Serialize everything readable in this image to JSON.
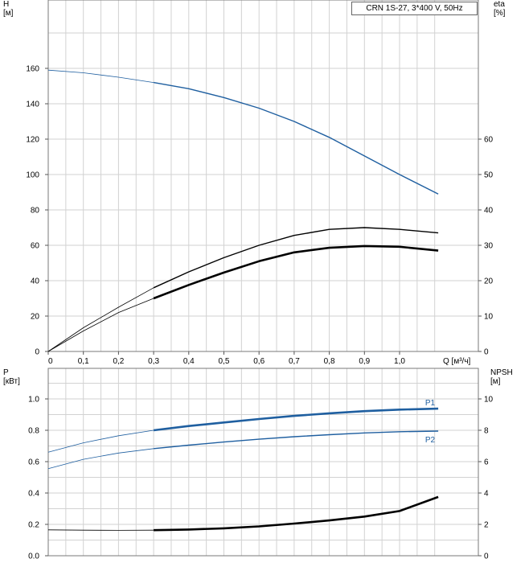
{
  "chart_data": [
    {
      "type": "line",
      "title": "CRN 1S-27, 3*400 V, 50Hz",
      "xlabel": "Q [м³/ч]",
      "ylabel_left": "H\n[м]",
      "ylabel_right": "eta\n[%]",
      "xlim": [
        0,
        1.1
      ],
      "ylim_left": [
        0,
        180
      ],
      "ylim_right": [
        0,
        90
      ],
      "x_ticks": [
        "0",
        "0,1",
        "0,2",
        "0,3",
        "0,4",
        "0,5",
        "0,6",
        "0,7",
        "0,8",
        "0,9",
        "1,0"
      ],
      "y_ticks_left": [
        "0",
        "20",
        "40",
        "60",
        "80",
        "100",
        "120",
        "140",
        "160"
      ],
      "y_ticks_right": [
        "0",
        "10",
        "20",
        "30",
        "40",
        "50",
        "60"
      ],
      "grid": true,
      "series": [
        {
          "axis": "left",
          "color": "#1f5fa0",
          "operating_range": [
            0.3,
            1.11
          ],
          "x": [
            0,
            0.1,
            0.2,
            0.3,
            0.4,
            0.5,
            0.6,
            0.7,
            0.8,
            0.9,
            1.0,
            1.11
          ],
          "values": [
            159,
            157.5,
            155,
            152,
            148.5,
            143.5,
            137.5,
            130,
            121,
            110.5,
            100,
            89
          ]
        },
        {
          "axis": "right",
          "color": "#000000",
          "operating_range": [
            0.3,
            1.11
          ],
          "x": [
            0,
            0.1,
            0.2,
            0.3,
            0.4,
            0.5,
            0.6,
            0.7,
            0.8,
            0.9,
            1.0,
            1.11
          ],
          "values": [
            0,
            6.7,
            12.5,
            18,
            22.5,
            26.5,
            30,
            32.8,
            34.5,
            35,
            34.5,
            33.5
          ]
        },
        {
          "axis": "right",
          "color": "#000000",
          "bold": true,
          "operating_range": [
            0.3,
            1.11
          ],
          "x": [
            0,
            0.1,
            0.2,
            0.3,
            0.4,
            0.5,
            0.6,
            0.7,
            0.8,
            0.9,
            1.0,
            1.11
          ],
          "values": [
            0,
            5.8,
            11,
            15,
            18.8,
            22.3,
            25.5,
            28,
            29.3,
            29.8,
            29.6,
            28.5
          ]
        }
      ]
    },
    {
      "type": "line",
      "xlim": [
        0,
        1.1
      ],
      "ylabel_left": "P\n[кВт]",
      "ylabel_right": "NPSH\n[м]",
      "ylim_left": [
        0,
        1.1
      ],
      "ylim_right": [
        0,
        11
      ],
      "y_ticks_left": [
        "0.0",
        "0.2",
        "0.4",
        "0.6",
        "0.8",
        "1.0"
      ],
      "y_ticks_right": [
        "0",
        "2",
        "4",
        "6",
        "8",
        "10"
      ],
      "grid": true,
      "series": [
        {
          "name": "P1",
          "axis": "left",
          "color": "#1f5fa0",
          "bold": true,
          "operating_range": [
            0.3,
            1.11
          ],
          "x": [
            0,
            0.1,
            0.2,
            0.3,
            0.4,
            0.5,
            0.6,
            0.7,
            0.8,
            0.9,
            1.0,
            1.11
          ],
          "values": [
            0.66,
            0.72,
            0.765,
            0.8,
            0.827,
            0.85,
            0.872,
            0.892,
            0.908,
            0.922,
            0.932,
            0.938
          ]
        },
        {
          "name": "P2",
          "axis": "left",
          "color": "#1f5fa0",
          "operating_range": [
            0.3,
            1.11
          ],
          "x": [
            0,
            0.1,
            0.2,
            0.3,
            0.4,
            0.5,
            0.6,
            0.7,
            0.8,
            0.9,
            1.0,
            1.11
          ],
          "values": [
            0.555,
            0.615,
            0.655,
            0.683,
            0.705,
            0.725,
            0.743,
            0.759,
            0.772,
            0.783,
            0.791,
            0.795
          ]
        },
        {
          "axis": "right",
          "color": "#000000",
          "bold": true,
          "operating_range": [
            0.3,
            1.11
          ],
          "x": [
            0,
            0.1,
            0.2,
            0.3,
            0.4,
            0.5,
            0.6,
            0.7,
            0.8,
            0.9,
            1.0,
            1.11
          ],
          "values": [
            1.65,
            1.63,
            1.62,
            1.63,
            1.67,
            1.75,
            1.87,
            2.05,
            2.25,
            2.5,
            2.85,
            3.75
          ]
        }
      ]
    }
  ]
}
